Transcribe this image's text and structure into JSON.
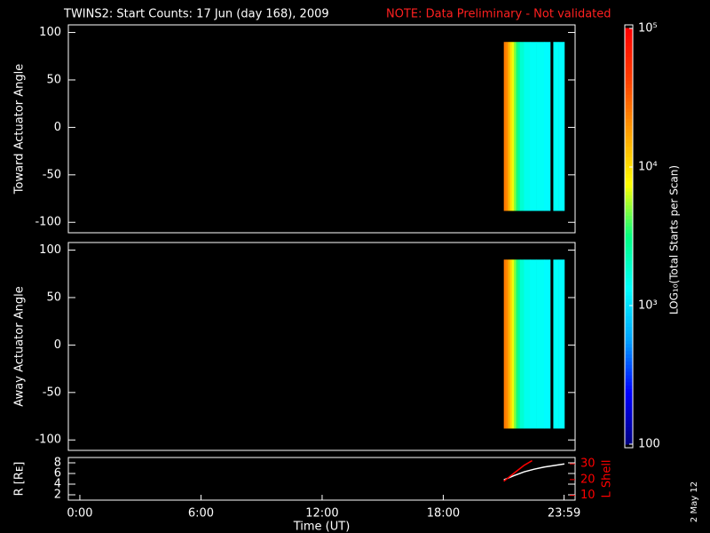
{
  "chart_data": [
    {
      "type": "heatmap",
      "title": "TWINS2: Start Counts: 17 Jun (day 168), 2009",
      "subtitle": "NOTE: Data Preliminary - Not validated",
      "ylabel": "Toward Actuator Angle",
      "xlim": [
        -0.57,
        24.53
      ],
      "ylim": [
        -111,
        108
      ],
      "yticks": [
        -100,
        -50,
        0,
        50,
        100
      ],
      "x_edges": [
        21.0,
        21.1,
        21.2,
        21.3,
        21.4,
        21.5,
        21.6,
        21.7,
        21.8,
        22.0,
        22.3,
        22.6,
        23.0,
        23.3,
        23.45,
        23.7,
        24.0
      ],
      "y_bins": [
        -88,
        90
      ],
      "values": [
        25000,
        22000,
        15000,
        10000,
        7000,
        5000,
        3500,
        2500,
        1800,
        1500,
        1400,
        1400,
        1300,
        null,
        1400,
        1300
      ]
    },
    {
      "type": "heatmap",
      "ylabel": "Away Actuator Angle",
      "xlim": [
        -0.57,
        24.53
      ],
      "ylim": [
        -111,
        108
      ],
      "yticks": [
        -100,
        -50,
        0,
        50,
        100
      ],
      "x_edges": [
        21.0,
        21.1,
        21.2,
        21.3,
        21.4,
        21.5,
        21.6,
        21.7,
        21.8,
        22.0,
        22.3,
        22.6,
        23.0,
        23.3,
        23.45,
        23.7,
        24.0
      ],
      "y_bins": [
        -88,
        90
      ],
      "values": [
        25000,
        22000,
        16000,
        11000,
        7000,
        5000,
        3500,
        2500,
        1800,
        1500,
        1400,
        1400,
        1300,
        null,
        1400,
        1300
      ]
    },
    {
      "type": "line",
      "ylabel": "R [Rᴇ]",
      "y2label": "L Shell",
      "xlabel": "Time (UT)",
      "xlim": [
        -0.57,
        24.53
      ],
      "ylim": [
        1,
        9
      ],
      "yticks": [
        2,
        4,
        6,
        8
      ],
      "y2lim": [
        7,
        34
      ],
      "y2ticks": [
        10,
        20,
        30
      ],
      "xticks": [
        {
          "value": 0,
          "label": "0:00"
        },
        {
          "value": 6,
          "label": "6:00"
        },
        {
          "value": 12,
          "label": "12:00"
        },
        {
          "value": 18,
          "label": "18:00"
        },
        {
          "value": 23.983,
          "label": "23:59"
        }
      ],
      "series": [
        {
          "name": "R",
          "color": "#ffffff",
          "x": [
            21.0,
            21.5,
            22.0,
            22.5,
            23.0,
            23.5,
            24.0
          ],
          "values": [
            4.8,
            5.6,
            6.3,
            6.8,
            7.2,
            7.5,
            7.8
          ]
        },
        {
          "name": "L Shell",
          "color": "#ff0000",
          "axis": "y2",
          "x": [
            21.0,
            21.5,
            22.0,
            22.4
          ],
          "values": [
            19,
            24,
            29,
            32
          ]
        }
      ]
    },
    {
      "type": "colorbar",
      "label": "LOG₁₀(Total Starts per Scan)",
      "log": true,
      "clim": [
        100,
        100000
      ],
      "ticks": [
        100,
        {
          "value": 1000,
          "label": "10³"
        },
        {
          "value": 10000,
          "label": "10⁴"
        },
        {
          "value": 100000,
          "label": "10⁵"
        }
      ],
      "colormap": [
        "#000080",
        "#0000ff",
        "#00a0ff",
        "#00ffff",
        "#00ff80",
        "#ffff00",
        "#ffa000",
        "#ff4000",
        "#ff0000"
      ],
      "date": "2 May 12"
    }
  ]
}
